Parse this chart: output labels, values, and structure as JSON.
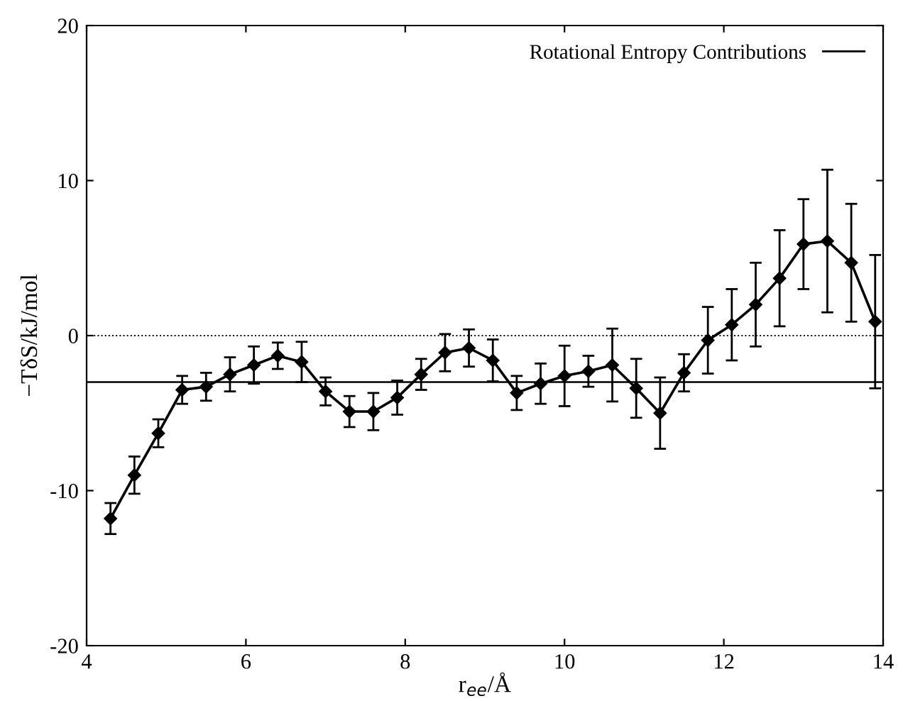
{
  "chart_data": {
    "type": "line",
    "xlabel": "r$_{ee}$/Å",
    "ylabel": "−TδS/kJ/mol",
    "xlim": [
      4,
      14
    ],
    "xticks": [
      4,
      6,
      8,
      10,
      12,
      14
    ],
    "ylim": [
      -20,
      20
    ],
    "yticks": [
      -20,
      -10,
      0,
      10,
      20
    ],
    "x": [
      4.3,
      4.6,
      4.9,
      5.2,
      5.5,
      5.8,
      6.1,
      6.4,
      6.7,
      7.0,
      7.3,
      7.6,
      7.9,
      8.2,
      8.5,
      8.8,
      9.1,
      9.4,
      9.7,
      10.0,
      10.3,
      10.6,
      10.9,
      11.2,
      11.5,
      11.8,
      12.1,
      12.4,
      12.7,
      13.0,
      13.3,
      13.6,
      13.9
    ],
    "series": [
      {
        "name": "Rotational Entropy Contributions",
        "color": "#000000",
        "values": [
          -11.8,
          -9.0,
          -6.3,
          -3.5,
          -3.3,
          -2.5,
          -1.9,
          -1.3,
          -1.7,
          -3.6,
          -4.9,
          -4.9,
          -4.0,
          -2.5,
          -1.1,
          -0.8,
          -1.6,
          -3.7,
          -3.1,
          -2.6,
          -2.3,
          -1.9,
          -3.4,
          -5.0,
          -2.4,
          -0.3,
          0.7,
          2.0,
          3.7,
          5.9,
          6.1,
          4.7,
          0.9
        ],
        "errors": [
          1.0,
          1.2,
          0.9,
          0.9,
          0.9,
          1.1,
          1.2,
          0.85,
          1.3,
          0.9,
          1.0,
          1.2,
          1.1,
          1.0,
          1.2,
          1.2,
          1.35,
          1.1,
          1.3,
          1.95,
          1.0,
          2.35,
          1.9,
          2.3,
          1.2,
          2.15,
          2.3,
          2.7,
          3.1,
          2.9,
          4.6,
          3.8,
          4.3
        ]
      }
    ],
    "ref_lines": [
      {
        "axis": "y",
        "value": 0,
        "color": "#000000",
        "line_style": "dotted"
      },
      {
        "axis": "y",
        "value": -3,
        "color": "#000000",
        "line_style": "solid"
      }
    ],
    "marker": "diamond",
    "line_style": "solid",
    "legend": "top right",
    "grid": false
  }
}
